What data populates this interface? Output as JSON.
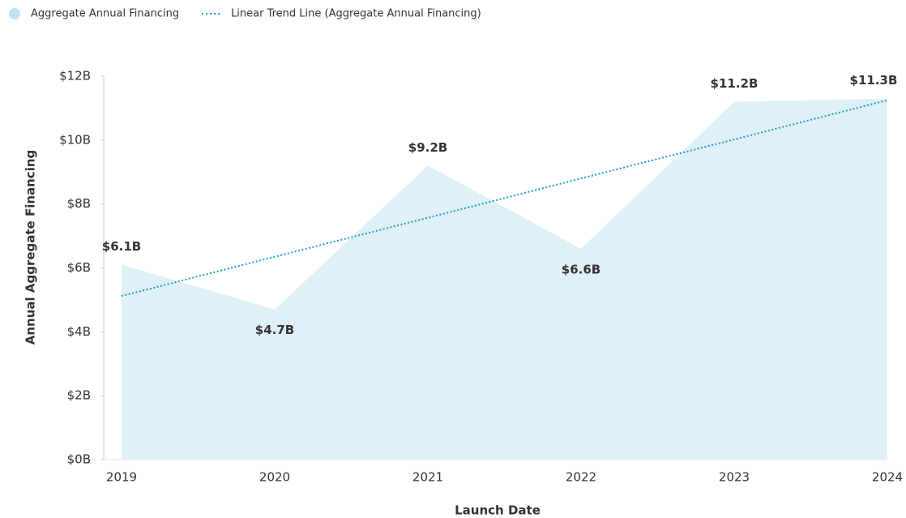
{
  "chart_data": {
    "type": "area",
    "x_label": "Launch Date",
    "y_label": "Annual Aggregate Financing",
    "categories": [
      "2019",
      "2020",
      "2021",
      "2022",
      "2023",
      "2024"
    ],
    "series": [
      {
        "name": "Aggregate Annual Financing",
        "color": "#dff0f7",
        "type": "area",
        "values": [
          6.1,
          4.7,
          9.2,
          6.6,
          11.2,
          11.3
        ],
        "value_labels": [
          "$6.1B",
          "$4.7B",
          "$9.2B",
          "$6.6B",
          "$11.2B",
          "$11.3B"
        ]
      },
      {
        "name": "Linear Trend Line (Aggregate Annual Financing)",
        "color": "#1a9bd7",
        "type": "trend",
        "values": [
          5.12,
          6.35,
          7.57,
          8.8,
          10.02,
          11.25
        ]
      }
    ],
    "ylim": [
      0,
      12
    ],
    "yticks": [
      {
        "value": 0,
        "label": "$0B"
      },
      {
        "value": 2,
        "label": "$2B"
      },
      {
        "value": 4,
        "label": "$4B"
      },
      {
        "value": 6,
        "label": "$6B"
      },
      {
        "value": 8,
        "label": "$8B"
      },
      {
        "value": 10,
        "label": "$10B"
      },
      {
        "value": 12,
        "label": "$12B"
      }
    ],
    "legend": "top-left"
  }
}
